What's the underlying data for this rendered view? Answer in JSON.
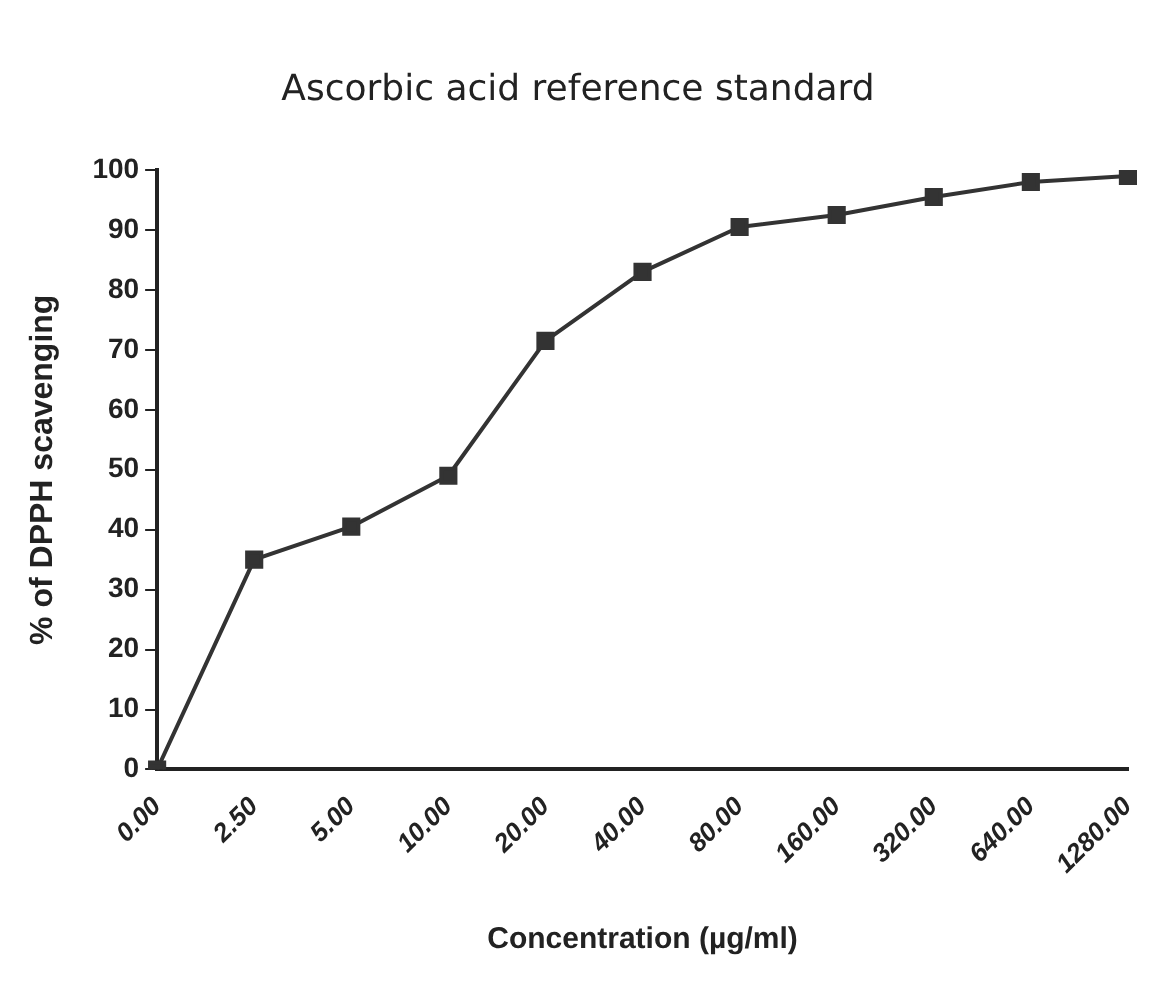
{
  "chart_data": {
    "type": "line",
    "title": "Ascorbic acid reference standard",
    "xlabel": "Concentration (µg/ml)",
    "ylabel": "% of DPPH scavenging",
    "categories": [
      "0.00",
      "2.50",
      "5.00",
      "10.00",
      "20.00",
      "40.00",
      "80.00",
      "160.00",
      "320.00",
      "640.00",
      "1280.00"
    ],
    "series": [
      {
        "color": "#333333",
        "values": [
          0,
          35,
          40.5,
          49,
          71.5,
          83,
          90.5,
          92.5,
          95.5,
          98,
          99
        ]
      }
    ],
    "ylim": [
      0,
      100
    ],
    "yticks": [
      0,
      10,
      20,
      30,
      40,
      50,
      60,
      70,
      80,
      90,
      100
    ],
    "grid": false,
    "legend": false,
    "marker": "square",
    "line_style": "solid"
  }
}
